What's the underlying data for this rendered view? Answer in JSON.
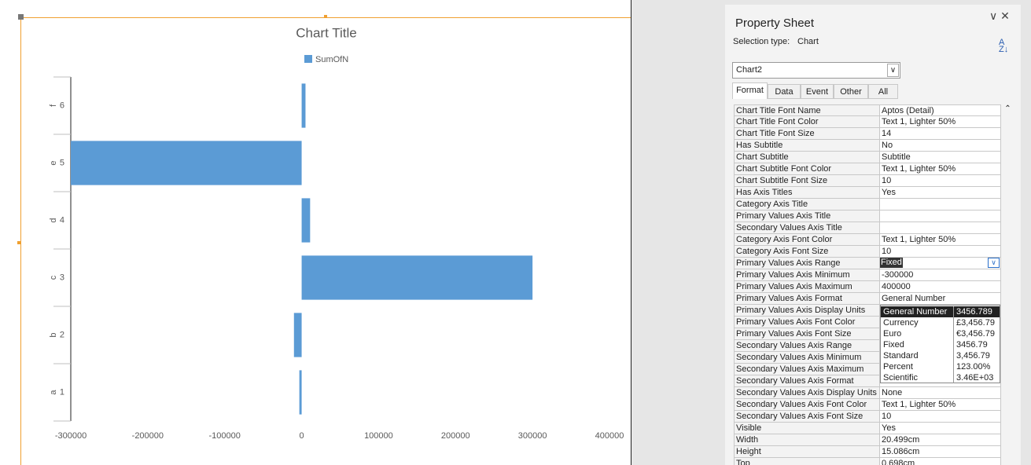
{
  "chart_data": {
    "type": "bar",
    "orientation": "horizontal",
    "title": "Chart Title",
    "categories": [
      "1",
      "2",
      "3",
      "4",
      "5",
      "6"
    ],
    "category_groups": [
      "a",
      "b",
      "c",
      "d",
      "e",
      "f"
    ],
    "series": [
      {
        "name": "SumOfN",
        "color": "#5b9bd5",
        "values": [
          -3000,
          -10000,
          300000,
          11000,
          -300000,
          5000
        ]
      }
    ],
    "xlim": [
      -300000,
      400000
    ],
    "xticks": [
      -300000,
      -200000,
      -100000,
      0,
      100000,
      200000,
      300000,
      400000
    ],
    "grid": false,
    "legend": "top"
  },
  "property_sheet": {
    "title": "Property Sheet",
    "selection_type_label": "Selection type:",
    "selection_type": "Chart",
    "object": "Chart2",
    "tabs": [
      "Format",
      "Data",
      "Event",
      "Other",
      "All"
    ],
    "rows": [
      {
        "name": "Chart Title Font Name",
        "value": "Aptos (Detail)"
      },
      {
        "name": "Chart Title Font Color",
        "value": "Text 1, Lighter 50%"
      },
      {
        "name": "Chart Title Font Size",
        "value": "14"
      },
      {
        "name": "Has Subtitle",
        "value": "No"
      },
      {
        "name": "Chart Subtitle",
        "value": "Subtitle"
      },
      {
        "name": "Chart Subtitle Font Color",
        "value": "Text 1, Lighter 50%"
      },
      {
        "name": "Chart Subtitle Font Size",
        "value": "10"
      },
      {
        "name": "Has Axis Titles",
        "value": "Yes"
      },
      {
        "name": "Category Axis Title"
      },
      {
        "name": "Primary Values Axis Title"
      },
      {
        "name": "Secondary Values Axis Title"
      },
      {
        "name": "Category Axis Font Color",
        "value": "Text 1, Lighter 50%"
      },
      {
        "name": "Category Axis Font Size",
        "value": "10"
      },
      {
        "name": "Primary Values Axis Range",
        "value": "Fixed"
      },
      {
        "name": "Primary Values Axis Minimum",
        "value": "-300000"
      },
      {
        "name": "Primary Values Axis Maximum",
        "value": "400000"
      },
      {
        "name": "Primary Values Axis Format",
        "value": "General Number"
      },
      {
        "name": "Primary Values Axis Display Units"
      },
      {
        "name": "Primary Values Axis Font Color"
      },
      {
        "name": "Primary Values Axis Font Size"
      },
      {
        "name": "Secondary Values Axis Range"
      },
      {
        "name": "Secondary Values Axis Minimum"
      },
      {
        "name": "Secondary Values Axis Maximum"
      },
      {
        "name": "Secondary Values Axis Format"
      },
      {
        "name": "Secondary Values Axis Display Units",
        "value": "None"
      },
      {
        "name": "Secondary Values Axis Font Color",
        "value": "Text 1, Lighter 50%"
      },
      {
        "name": "Secondary Values Axis Font Size",
        "value": "10"
      },
      {
        "name": "Visible",
        "value": "Yes"
      },
      {
        "name": "Width",
        "value": "20.499cm"
      },
      {
        "name": "Height",
        "value": "15.086cm"
      },
      {
        "name": "Top",
        "value": "0.698cm"
      }
    ],
    "format_options": [
      {
        "name": "General Number",
        "example": "3456.789"
      },
      {
        "name": "Currency",
        "example": "£3,456.79"
      },
      {
        "name": "Euro",
        "example": "€3,456.79"
      },
      {
        "name": "Fixed",
        "example": "3456.79"
      },
      {
        "name": "Standard",
        "example": "3,456.79"
      },
      {
        "name": "Percent",
        "example": "123.00%"
      },
      {
        "name": "Scientific",
        "example": "3.46E+03"
      }
    ]
  }
}
